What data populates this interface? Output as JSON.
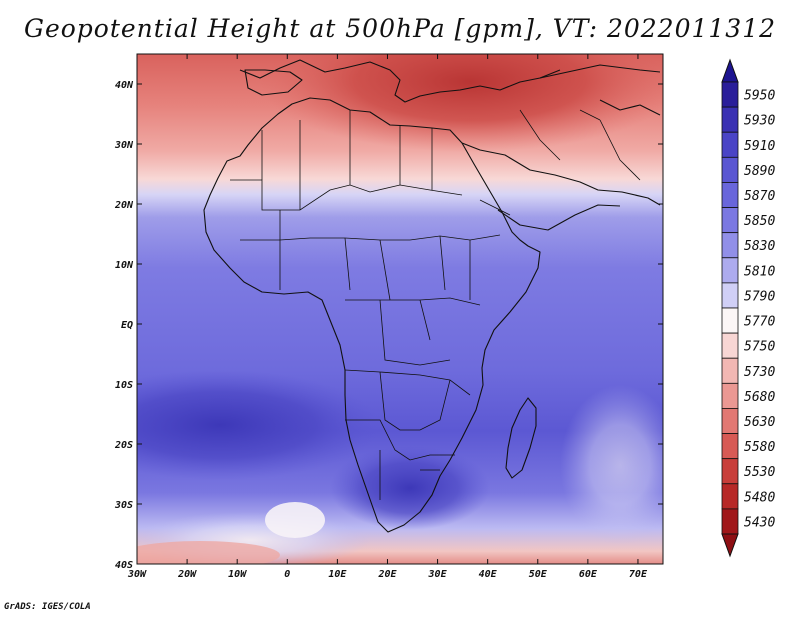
{
  "title": "Geopotential Height at 500hPa [gpm], VT: 2022011312",
  "footer": "GrADS: IGES/COLA",
  "map": {
    "lat_labels": [
      {
        "text": "40N",
        "lat": 40
      },
      {
        "text": "30N",
        "lat": 30
      },
      {
        "text": "20N",
        "lat": 20
      },
      {
        "text": "10N",
        "lat": 10
      },
      {
        "text": "EQ",
        "lat": 0
      },
      {
        "text": "10S",
        "lat": -10
      },
      {
        "text": "20S",
        "lat": -20
      },
      {
        "text": "30S",
        "lat": -30
      },
      {
        "text": "40S",
        "lat": -40
      }
    ],
    "lon_labels": [
      {
        "text": "30W",
        "lon": -30
      },
      {
        "text": "20W",
        "lon": -20
      },
      {
        "text": "10W",
        "lon": -10
      },
      {
        "text": "0",
        "lon": 0
      },
      {
        "text": "10E",
        "lon": 10
      },
      {
        "text": "20E",
        "lon": 20
      },
      {
        "text": "30E",
        "lon": 30
      },
      {
        "text": "40E",
        "lon": 40
      },
      {
        "text": "50E",
        "lon": 50
      },
      {
        "text": "60E",
        "lon": 60
      },
      {
        "text": "70E",
        "lon": 70
      }
    ]
  },
  "colorbar": {
    "levels": [
      {
        "label": "5950",
        "color": "#2a1e9a"
      },
      {
        "label": "5930",
        "color": "#3a31b3"
      },
      {
        "label": "5910",
        "color": "#4a44c6"
      },
      {
        "label": "5890",
        "color": "#5a56d2"
      },
      {
        "label": "5870",
        "color": "#6966db"
      },
      {
        "label": "5850",
        "color": "#7b78e2"
      },
      {
        "label": "5830",
        "color": "#918fe8"
      },
      {
        "label": "5810",
        "color": "#adabee"
      },
      {
        "label": "5790",
        "color": "#d0cff6"
      },
      {
        "label": "5770",
        "color": "#fbf6f6"
      },
      {
        "label": "5750",
        "color": "#f8d6d4"
      },
      {
        "label": "5730",
        "color": "#f2b7b3"
      },
      {
        "label": "5680",
        "color": "#eb9893"
      },
      {
        "label": "5630",
        "color": "#e27873"
      },
      {
        "label": "5580",
        "color": "#d75a55"
      },
      {
        "label": "5530",
        "color": "#c83e3a"
      },
      {
        "label": "5480",
        "color": "#b72827"
      },
      {
        "label": "5430",
        "color": "#a0171a"
      }
    ],
    "top_arrow_color": "#1d1490",
    "bottom_arrow_color": "#8e0f14"
  }
}
